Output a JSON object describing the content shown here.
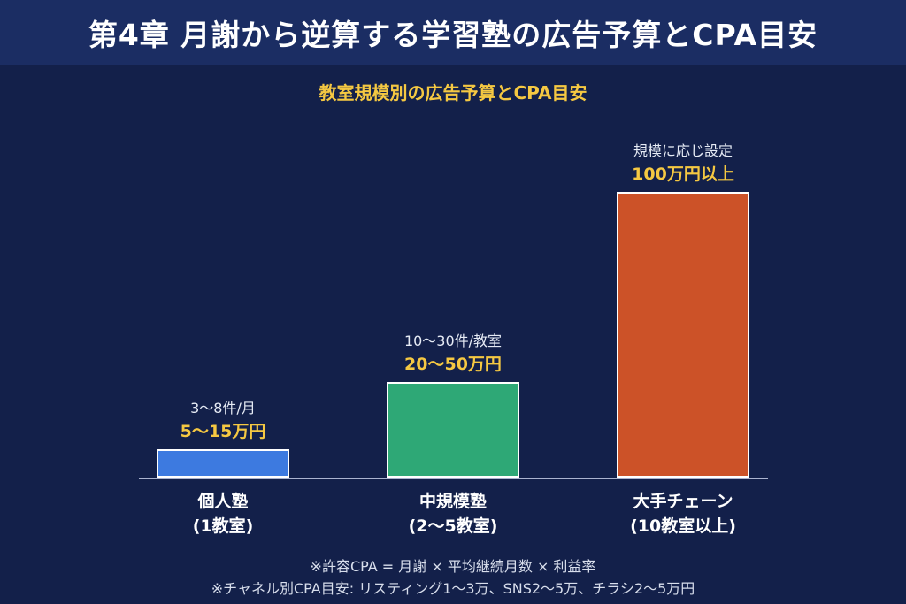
{
  "header": {
    "title": "第4章 月謝から逆算する学習塾の広告予算とCPA目安"
  },
  "chart_data": {
    "type": "bar",
    "title": "教室規模別の広告予算とCPA目安",
    "categories": [
      {
        "line1": "個人塾",
        "line2": "(1教室)"
      },
      {
        "line1": "中規模塾",
        "line2": "(2〜5教室)"
      },
      {
        "line1": "大手チェーン",
        "line2": "(10教室以上)"
      }
    ],
    "values": [
      15,
      50,
      150
    ],
    "ylim": [
      0,
      160
    ],
    "colors": [
      "#3d7ae0",
      "#2ea876",
      "#cc5228"
    ],
    "notes": [
      "3〜8件/月",
      "10〜30件/教室",
      "規模に応じ設定"
    ],
    "value_labels": [
      "5〜15万円",
      "20〜50万円",
      "100万円以上"
    ]
  },
  "footnotes": [
    "※許容CPA = 月謝 × 平均継続月数 × 利益率",
    "※チャネル別CPA目安: リスティング1〜3万、SNS2〜5万、チラシ2〜5万円"
  ]
}
